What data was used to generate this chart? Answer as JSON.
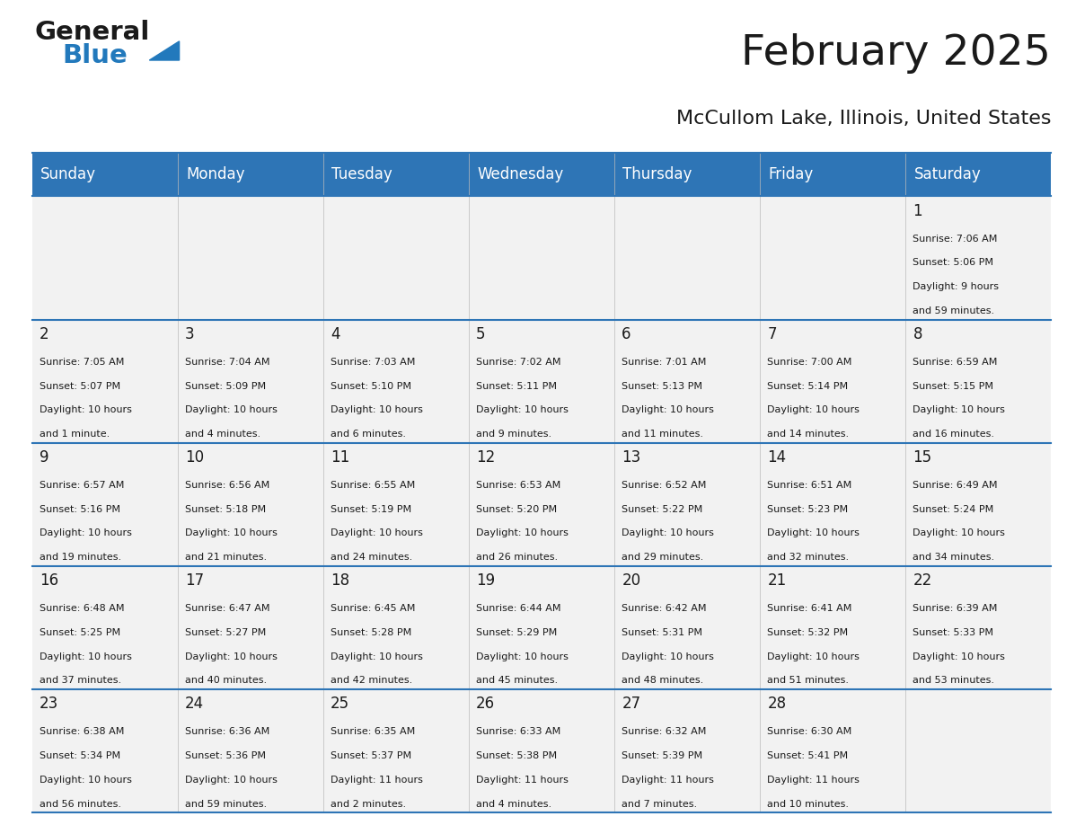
{
  "title": "February 2025",
  "subtitle": "McCullom Lake, Illinois, United States",
  "header_bg": "#2E75B6",
  "header_text": "#FFFFFF",
  "cell_bg": "#F2F2F2",
  "separator_color": "#2E75B6",
  "text_color": "#1a1a1a",
  "day_headers": [
    "Sunday",
    "Monday",
    "Tuesday",
    "Wednesday",
    "Thursday",
    "Friday",
    "Saturday"
  ],
  "calendar_data": [
    [
      null,
      null,
      null,
      null,
      null,
      null,
      {
        "day": "1",
        "sunrise": "7:06 AM",
        "sunset": "5:06 PM",
        "daylight": "9 hours\nand 59 minutes."
      }
    ],
    [
      {
        "day": "2",
        "sunrise": "7:05 AM",
        "sunset": "5:07 PM",
        "daylight": "10 hours\nand 1 minute."
      },
      {
        "day": "3",
        "sunrise": "7:04 AM",
        "sunset": "5:09 PM",
        "daylight": "10 hours\nand 4 minutes."
      },
      {
        "day": "4",
        "sunrise": "7:03 AM",
        "sunset": "5:10 PM",
        "daylight": "10 hours\nand 6 minutes."
      },
      {
        "day": "5",
        "sunrise": "7:02 AM",
        "sunset": "5:11 PM",
        "daylight": "10 hours\nand 9 minutes."
      },
      {
        "day": "6",
        "sunrise": "7:01 AM",
        "sunset": "5:13 PM",
        "daylight": "10 hours\nand 11 minutes."
      },
      {
        "day": "7",
        "sunrise": "7:00 AM",
        "sunset": "5:14 PM",
        "daylight": "10 hours\nand 14 minutes."
      },
      {
        "day": "8",
        "sunrise": "6:59 AM",
        "sunset": "5:15 PM",
        "daylight": "10 hours\nand 16 minutes."
      }
    ],
    [
      {
        "day": "9",
        "sunrise": "6:57 AM",
        "sunset": "5:16 PM",
        "daylight": "10 hours\nand 19 minutes."
      },
      {
        "day": "10",
        "sunrise": "6:56 AM",
        "sunset": "5:18 PM",
        "daylight": "10 hours\nand 21 minutes."
      },
      {
        "day": "11",
        "sunrise": "6:55 AM",
        "sunset": "5:19 PM",
        "daylight": "10 hours\nand 24 minutes."
      },
      {
        "day": "12",
        "sunrise": "6:53 AM",
        "sunset": "5:20 PM",
        "daylight": "10 hours\nand 26 minutes."
      },
      {
        "day": "13",
        "sunrise": "6:52 AM",
        "sunset": "5:22 PM",
        "daylight": "10 hours\nand 29 minutes."
      },
      {
        "day": "14",
        "sunrise": "6:51 AM",
        "sunset": "5:23 PM",
        "daylight": "10 hours\nand 32 minutes."
      },
      {
        "day": "15",
        "sunrise": "6:49 AM",
        "sunset": "5:24 PM",
        "daylight": "10 hours\nand 34 minutes."
      }
    ],
    [
      {
        "day": "16",
        "sunrise": "6:48 AM",
        "sunset": "5:25 PM",
        "daylight": "10 hours\nand 37 minutes."
      },
      {
        "day": "17",
        "sunrise": "6:47 AM",
        "sunset": "5:27 PM",
        "daylight": "10 hours\nand 40 minutes."
      },
      {
        "day": "18",
        "sunrise": "6:45 AM",
        "sunset": "5:28 PM",
        "daylight": "10 hours\nand 42 minutes."
      },
      {
        "day": "19",
        "sunrise": "6:44 AM",
        "sunset": "5:29 PM",
        "daylight": "10 hours\nand 45 minutes."
      },
      {
        "day": "20",
        "sunrise": "6:42 AM",
        "sunset": "5:31 PM",
        "daylight": "10 hours\nand 48 minutes."
      },
      {
        "day": "21",
        "sunrise": "6:41 AM",
        "sunset": "5:32 PM",
        "daylight": "10 hours\nand 51 minutes."
      },
      {
        "day": "22",
        "sunrise": "6:39 AM",
        "sunset": "5:33 PM",
        "daylight": "10 hours\nand 53 minutes."
      }
    ],
    [
      {
        "day": "23",
        "sunrise": "6:38 AM",
        "sunset": "5:34 PM",
        "daylight": "10 hours\nand 56 minutes."
      },
      {
        "day": "24",
        "sunrise": "6:36 AM",
        "sunset": "5:36 PM",
        "daylight": "10 hours\nand 59 minutes."
      },
      {
        "day": "25",
        "sunrise": "6:35 AM",
        "sunset": "5:37 PM",
        "daylight": "11 hours\nand 2 minutes."
      },
      {
        "day": "26",
        "sunrise": "6:33 AM",
        "sunset": "5:38 PM",
        "daylight": "11 hours\nand 4 minutes."
      },
      {
        "day": "27",
        "sunrise": "6:32 AM",
        "sunset": "5:39 PM",
        "daylight": "11 hours\nand 7 minutes."
      },
      {
        "day": "28",
        "sunrise": "6:30 AM",
        "sunset": "5:41 PM",
        "daylight": "11 hours\nand 10 minutes."
      },
      null
    ]
  ],
  "logo_color_general": "#1a1a1a",
  "logo_color_blue": "#2279BC",
  "title_fontsize": 34,
  "subtitle_fontsize": 16,
  "header_fontsize": 12,
  "day_number_fontsize": 12,
  "cell_text_fontsize": 8
}
